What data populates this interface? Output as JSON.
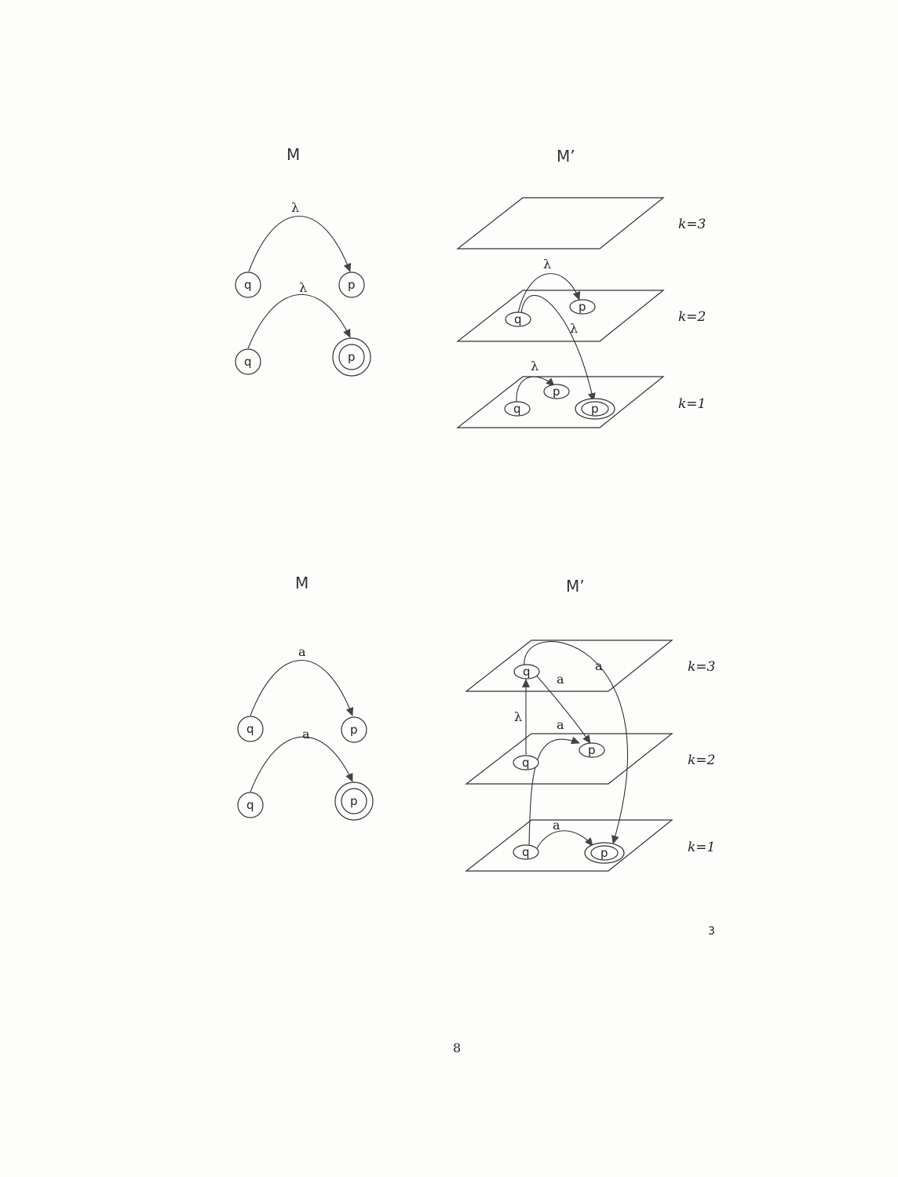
{
  "diagrams": {
    "top": {
      "left_title": "M",
      "right_title": "M’",
      "left_edge_1_label": "λ",
      "left_edge_2_label": "λ",
      "right_edge_top_label": "λ",
      "right_edge_cross_label": "λ",
      "right_edge_bottom_label": "λ",
      "layers": [
        "k=3",
        "k=2",
        "k=1"
      ]
    },
    "bottom": {
      "left_title": "M",
      "right_title": "M’",
      "left_edge_1_label": "a",
      "left_edge_2_label": "a",
      "right_edge_k3_label": "a",
      "right_edge_far_label": "a",
      "right_edge_vertical_label": "λ",
      "right_edge_k2_label": "a",
      "right_edge_k1_label": "a",
      "layers": [
        "k=3",
        "k=2",
        "k=1"
      ]
    }
  },
  "states": {
    "q": "q",
    "p": "p"
  },
  "figure_number": "3",
  "page_number": "8"
}
